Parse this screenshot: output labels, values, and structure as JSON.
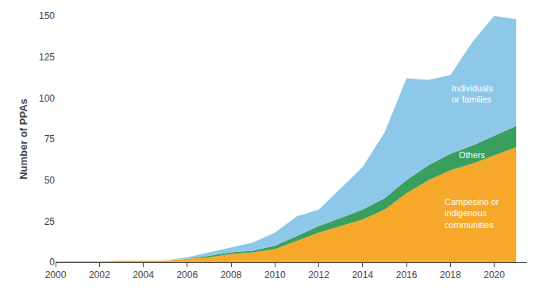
{
  "chart_data": {
    "type": "area",
    "stacked": true,
    "x": [
      2000,
      2001,
      2002,
      2003,
      2004,
      2005,
      2006,
      2007,
      2008,
      2009,
      2010,
      2011,
      2012,
      2013,
      2014,
      2015,
      2016,
      2017,
      2018,
      2019,
      2020,
      2021
    ],
    "series": [
      {
        "name": "Campesino or\nindigenous\ncommunities",
        "color": "#f5a82a",
        "values": [
          0.5,
          0.5,
          0.5,
          1,
          1,
          1,
          2,
          3,
          5,
          6,
          8,
          13,
          18,
          22,
          26,
          32,
          42,
          50,
          56,
          60,
          65,
          70
        ]
      },
      {
        "name": "Others",
        "color": "#3a9e5f",
        "values": [
          0,
          0,
          0,
          0,
          0,
          0,
          0,
          1,
          1,
          1,
          2,
          3,
          4,
          5,
          6,
          7,
          8,
          9,
          10,
          11,
          12,
          13
        ]
      },
      {
        "name": "Individuals\nor families",
        "color": "#8dc8e8",
        "values": [
          0,
          0,
          0,
          0,
          0,
          0,
          1,
          2,
          3,
          5,
          8,
          12,
          10,
          18,
          26,
          40,
          62,
          52,
          48,
          63,
          73,
          65
        ]
      }
    ],
    "ylabel": "Number of PPAs",
    "xlim": [
      2000,
      2021.5
    ],
    "ylim": [
      0,
      150
    ],
    "xticks": [
      2000,
      2002,
      2004,
      2006,
      2008,
      2010,
      2012,
      2014,
      2016,
      2018,
      2020
    ],
    "yticks": [
      0,
      25,
      50,
      75,
      100,
      125,
      150
    ],
    "grid": false
  }
}
